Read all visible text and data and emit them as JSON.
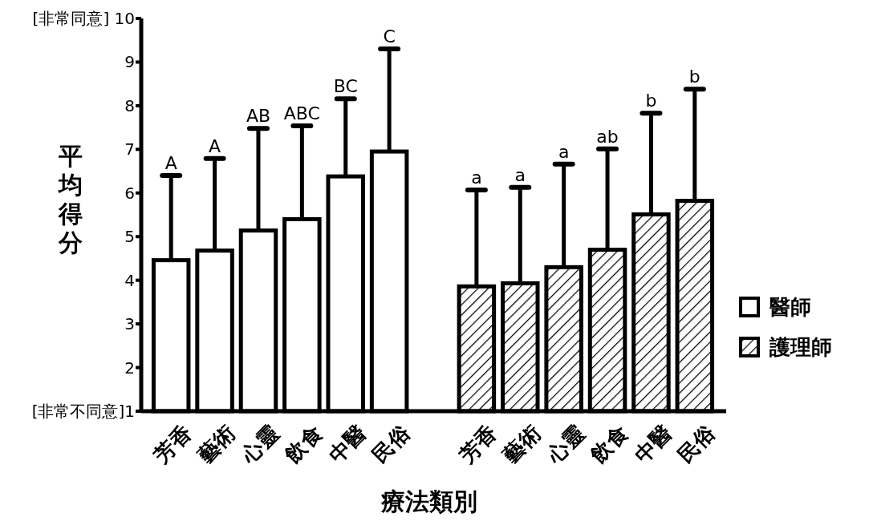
{
  "chart_data": {
    "type": "bar",
    "xlabel": "療法類別",
    "ylabel": "平均得分",
    "categories": [
      "芳香",
      "藝術",
      "心靈",
      "飲食",
      "中醫",
      "民俗",
      null,
      "芳香",
      "藝術",
      "心靈",
      "飲食",
      "中醫",
      "民俗"
    ],
    "series": [
      {
        "name": "醫師",
        "color": "#ffffff",
        "values": [
          4.46,
          4.68,
          5.14,
          5.4,
          6.38,
          6.95,
          null,
          null,
          null,
          null,
          null,
          null,
          null
        ],
        "errors": [
          1.94,
          2.11,
          2.34,
          2.14,
          1.78,
          2.35,
          null,
          null,
          null,
          null,
          null,
          null,
          null
        ]
      },
      {
        "name": "護理師",
        "color": "#000000",
        "values": [
          null,
          null,
          null,
          null,
          null,
          null,
          null,
          3.86,
          3.93,
          4.3,
          4.7,
          5.51,
          5.82
        ],
        "errors": [
          null,
          null,
          null,
          null,
          null,
          null,
          null,
          2.21,
          2.2,
          2.36,
          2.31,
          2.32,
          2.56
        ]
      }
    ],
    "annotations": [
      "A",
      "A",
      "AB",
      "ABC",
      "BC",
      "C",
      "a",
      "a",
      "a",
      "ab",
      "b",
      "b"
    ],
    "ylim": [
      1,
      10
    ],
    "yticks": [
      {
        "value": 1,
        "label": "[非常不同意]1"
      },
      2,
      3,
      4,
      5,
      6,
      7,
      8,
      9,
      {
        "value": 10,
        "label": "[非常同意] 10"
      }
    ],
    "grid": false,
    "legend": "right"
  }
}
